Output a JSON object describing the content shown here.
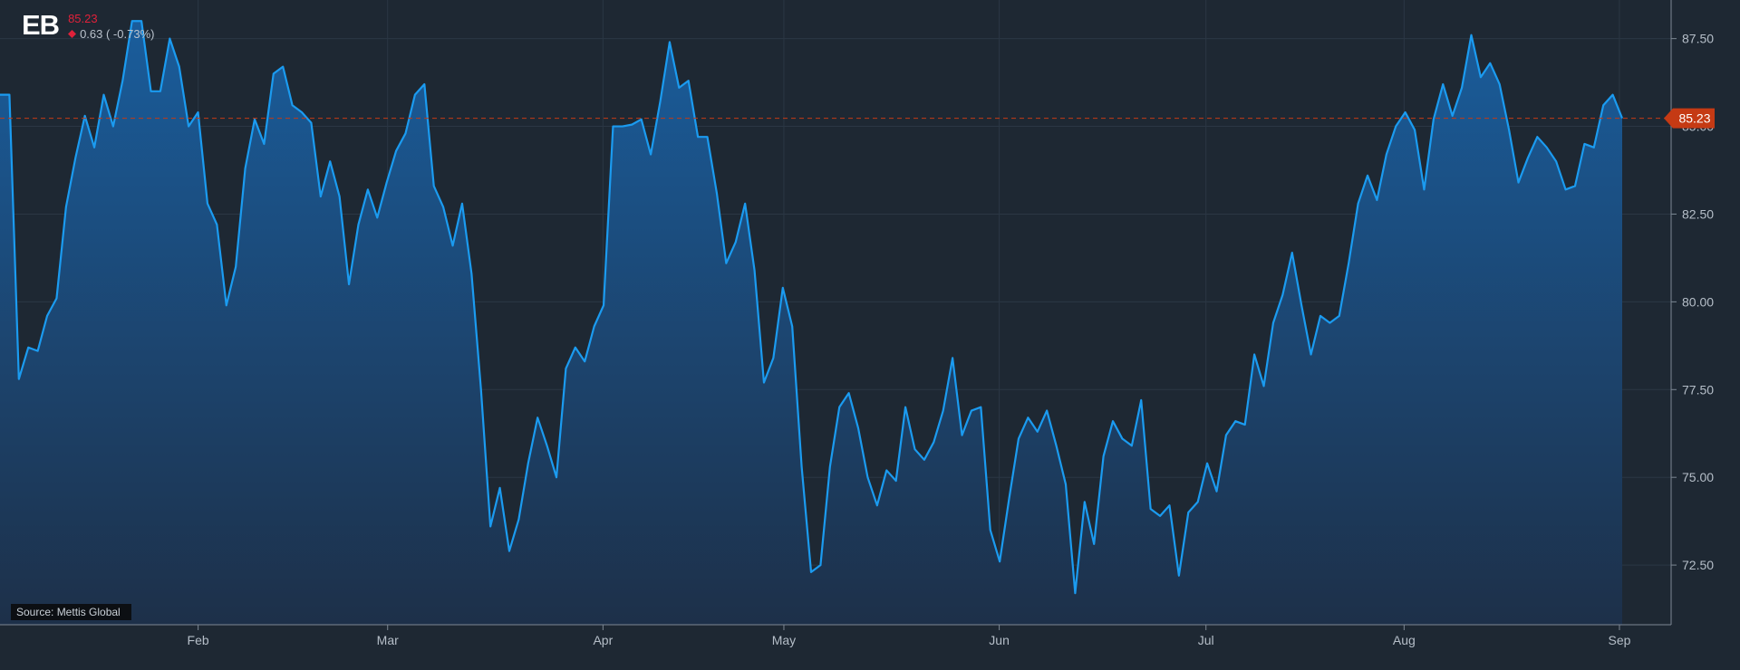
{
  "header": {
    "ticker": "EB",
    "price": "85.23",
    "change": "0.63 ( -0.73%)"
  },
  "source": "Source: Mettis Global",
  "colors": {
    "background": "#1e2833",
    "line": "#1b9bf0",
    "price_down": "#e0213a",
    "last_price_marker": "#c53a14"
  },
  "chart_data": {
    "type": "area",
    "title": "",
    "xlabel": "",
    "ylabel": "",
    "ylim": [
      70.8,
      88.6
    ],
    "y_ticks": [
      "72.50",
      "75.00",
      "77.50",
      "80.00",
      "82.50",
      "85.00",
      "87.50"
    ],
    "x_ticks": [
      {
        "label": "Feb",
        "x": 23
      },
      {
        "label": "Mar",
        "x": 45
      },
      {
        "label": "Apr",
        "x": 70
      },
      {
        "label": "May",
        "x": 91
      },
      {
        "label": "Jun",
        "x": 116
      },
      {
        "label": "Jul",
        "x": 140
      },
      {
        "label": "Aug",
        "x": 163
      },
      {
        "label": "Sep",
        "x": 188
      }
    ],
    "xlim": [
      0,
      194
    ],
    "grid": true,
    "last_price": 85.23,
    "last_price_label": "85.23",
    "series": [
      {
        "values": [
          85.9,
          85.9,
          77.8,
          78.7,
          78.6,
          79.6,
          80.1,
          82.7,
          84.1,
          85.3,
          84.4,
          85.9,
          85.0,
          86.3,
          88.0,
          88.0,
          86.0,
          86.0,
          87.5,
          86.7,
          85.0,
          85.4,
          82.8,
          82.2,
          79.9,
          81.0,
          83.8,
          85.2,
          84.5,
          86.5,
          86.7,
          85.6,
          85.4,
          85.1,
          83.0,
          84.0,
          83.0,
          80.5,
          82.2,
          83.2,
          82.4,
          83.4,
          84.3,
          84.8,
          85.9,
          86.2,
          83.3,
          82.7,
          81.6,
          82.8,
          80.8,
          77.5,
          73.6,
          74.7,
          72.9,
          73.8,
          75.4,
          76.7,
          75.9,
          75.0,
          78.1,
          78.7,
          78.3,
          79.3,
          79.9,
          85.0,
          85.0,
          85.05,
          85.2,
          84.2,
          85.7,
          87.4,
          86.1,
          86.3,
          84.7,
          84.7,
          83.1,
          81.1,
          81.7,
          82.8,
          80.9,
          77.7,
          78.4,
          80.4,
          79.3,
          75.3,
          72.3,
          72.5,
          75.3,
          77.0,
          77.4,
          76.4,
          75.0,
          74.2,
          75.2,
          74.9,
          77.0,
          75.8,
          75.5,
          76.0,
          76.9,
          78.4,
          76.2,
          76.9,
          77.0,
          73.5,
          72.6,
          74.4,
          76.1,
          76.7,
          76.3,
          76.9,
          75.9,
          74.8,
          71.7,
          74.3,
          73.1,
          75.6,
          76.6,
          76.1,
          75.9,
          77.2,
          74.1,
          73.9,
          74.2,
          72.2,
          74.0,
          74.3,
          75.4,
          74.6,
          76.2,
          76.6,
          76.5,
          78.5,
          77.6,
          79.4,
          80.2,
          81.4,
          79.9,
          78.5,
          79.6,
          79.4,
          79.6,
          81.1,
          82.8,
          83.6,
          82.9,
          84.2,
          85.0,
          85.4,
          84.9,
          83.2,
          85.2,
          86.2,
          85.3,
          86.1,
          87.6,
          86.4,
          86.8,
          86.2,
          84.9,
          83.4,
          84.1,
          84.7,
          84.4,
          84.0,
          83.2,
          83.3,
          84.5,
          84.4,
          85.6,
          85.9,
          85.23
        ]
      }
    ]
  }
}
